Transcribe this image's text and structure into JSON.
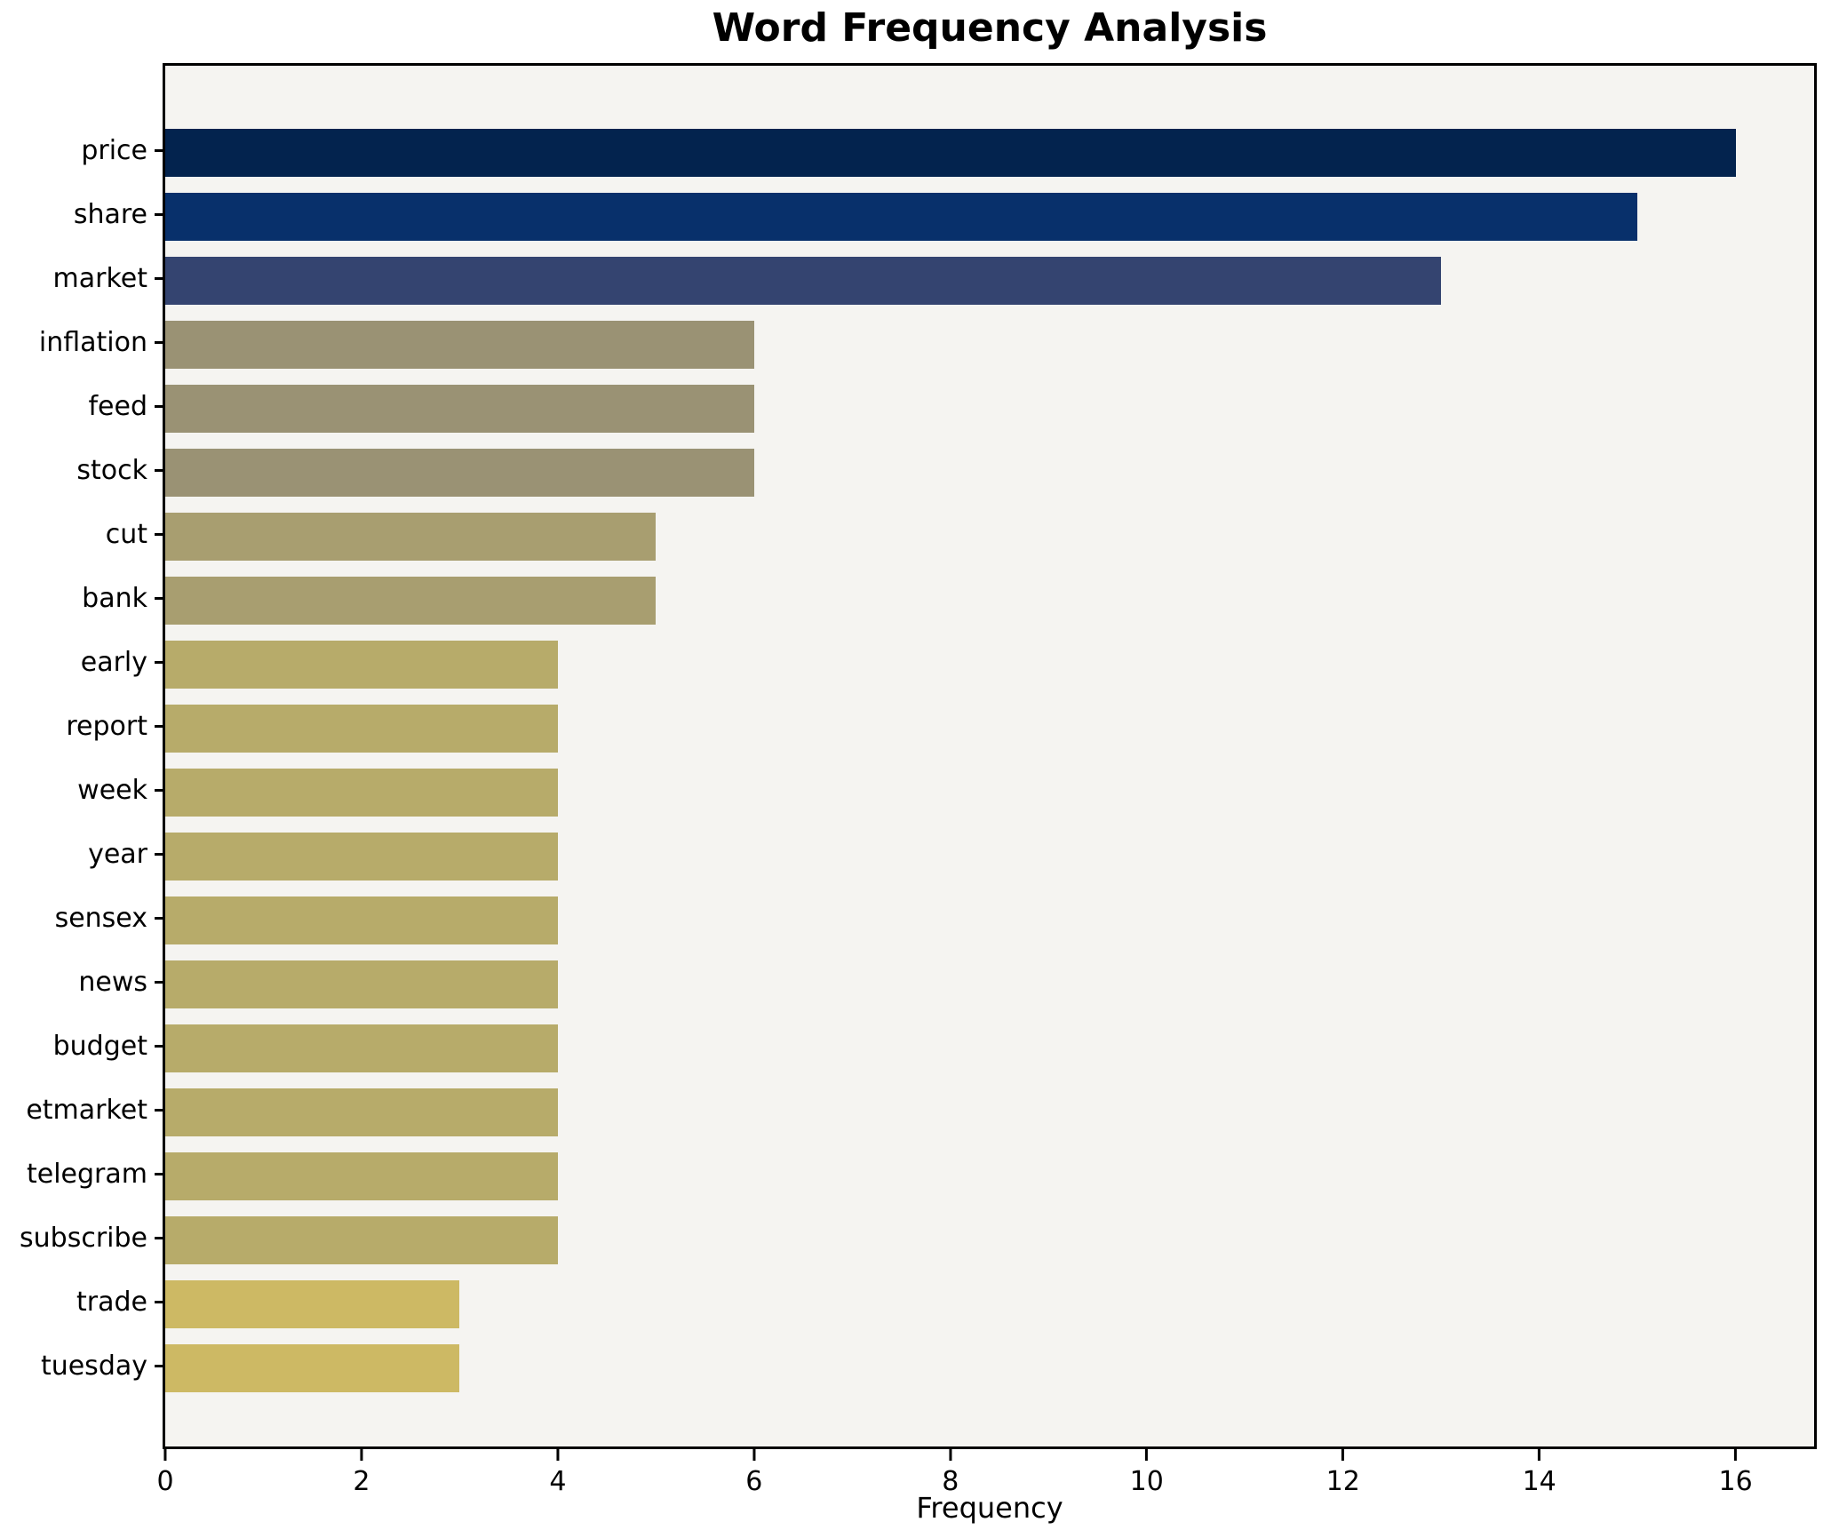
{
  "chart_data": {
    "type": "bar",
    "orientation": "horizontal",
    "title": "Word Frequency Analysis",
    "xlabel": "Frequency",
    "ylabel": "",
    "categories": [
      "price",
      "share",
      "market",
      "inflation",
      "feed",
      "stock",
      "cut",
      "bank",
      "early",
      "report",
      "week",
      "year",
      "sensex",
      "news",
      "budget",
      "etmarket",
      "telegram",
      "subscribe",
      "trade",
      "tuesday"
    ],
    "values": [
      16,
      15,
      13,
      6,
      6,
      6,
      5,
      5,
      4,
      4,
      4,
      4,
      4,
      4,
      4,
      4,
      4,
      4,
      3,
      3
    ],
    "bar_colors": [
      "#03234e",
      "#08306b",
      "#344470",
      "#9a9274",
      "#9a9274",
      "#9a9274",
      "#a89e70",
      "#a89e70",
      "#b7ab6a",
      "#b7ab6a",
      "#b7ab6a",
      "#b7ab6a",
      "#b7ab6a",
      "#b7ab6a",
      "#b7ab6a",
      "#b7ab6a",
      "#b7ab6a",
      "#b7ab6a",
      "#cdb964",
      "#cdb964"
    ],
    "xlim": [
      0,
      16.8
    ],
    "xticks": [
      0,
      2,
      4,
      6,
      8,
      10,
      12,
      14,
      16
    ],
    "grid": false,
    "legend": "none",
    "plot_bg": "#f5f4f1",
    "fig_bg": "#ffffff",
    "colormap": "cividis-reversed-by-value"
  }
}
